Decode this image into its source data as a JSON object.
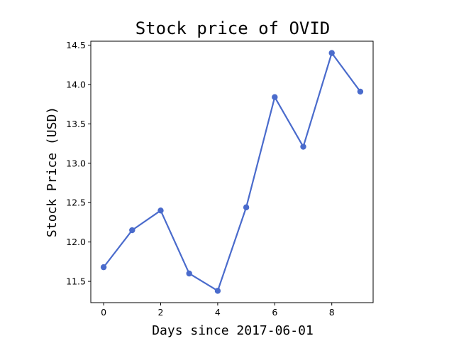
{
  "chart_data": {
    "type": "line",
    "title": "Stock price of OVID",
    "xlabel": "Days since 2017-06-01",
    "ylabel": "Stock Price (USD)",
    "x": [
      0,
      1,
      2,
      3,
      4,
      5,
      6,
      7,
      8,
      9
    ],
    "series": [
      {
        "values": [
          11.68,
          12.15,
          12.4,
          11.6,
          11.38,
          12.44,
          13.84,
          13.21,
          14.4,
          13.91
        ]
      }
    ],
    "xlim": [
      -0.45,
      9.45
    ],
    "ylim": [
      11.23,
      14.55
    ],
    "xticks": [
      0,
      2,
      4,
      6,
      8
    ],
    "xtick_labels": [
      "0",
      "2",
      "4",
      "6",
      "8"
    ],
    "yticks": [
      11.5,
      12.0,
      12.5,
      13.0,
      13.5,
      14.0,
      14.5
    ],
    "ytick_labels": [
      "11.5",
      "12.0",
      "12.5",
      "13.0",
      "13.5",
      "14.0",
      "14.5"
    ],
    "grid": false,
    "legend": false,
    "line_color": "#4a6bcc",
    "marker": "circle"
  }
}
